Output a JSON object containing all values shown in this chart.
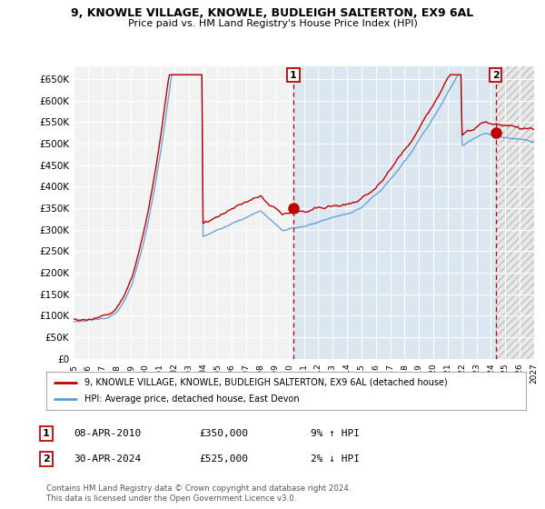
{
  "title": "9, KNOWLE VILLAGE, KNOWLE, BUDLEIGH SALTERTON, EX9 6AL",
  "subtitle": "Price paid vs. HM Land Registry's House Price Index (HPI)",
  "ylim": [
    0,
    680000
  ],
  "yticks": [
    0,
    50000,
    100000,
    150000,
    200000,
    250000,
    300000,
    350000,
    400000,
    450000,
    500000,
    550000,
    600000,
    650000
  ],
  "ytick_labels": [
    "£0",
    "£50K",
    "£100K",
    "£150K",
    "£200K",
    "£250K",
    "£300K",
    "£350K",
    "£400K",
    "£450K",
    "£500K",
    "£550K",
    "£600K",
    "£650K"
  ],
  "hpi_color": "#5b9bd5",
  "price_color": "#c00000",
  "bg_color": "#f2f2f2",
  "plot_bg_color": "#f2f2f2",
  "shade_color": "#dce6f1",
  "hatch_color": "#d0d0d0",
  "grid_color": "#ffffff",
  "legend_label_price": "9, KNOWLE VILLAGE, KNOWLE, BUDLEIGH SALTERTON, EX9 6AL (detached house)",
  "legend_label_hpi": "HPI: Average price, detached house, East Devon",
  "sale1_label": "1",
  "sale1_date": "08-APR-2010",
  "sale1_price": "£350,000",
  "sale1_hpi": "9% ↑ HPI",
  "sale2_label": "2",
  "sale2_date": "30-APR-2024",
  "sale2_price": "£525,000",
  "sale2_hpi": "2% ↓ HPI",
  "footnote": "Contains HM Land Registry data © Crown copyright and database right 2024.\nThis data is licensed under the Open Government Licence v3.0.",
  "xstart_year": 1995,
  "xend_year": 2027,
  "xtick_years": [
    1995,
    1996,
    1997,
    1998,
    1999,
    2000,
    2001,
    2002,
    2003,
    2004,
    2005,
    2006,
    2007,
    2008,
    2009,
    2010,
    2011,
    2012,
    2013,
    2014,
    2015,
    2016,
    2017,
    2018,
    2019,
    2020,
    2021,
    2022,
    2023,
    2024,
    2025,
    2026,
    2027
  ],
  "sale1_x": 2010.27,
  "sale1_y": 350000,
  "sale2_x": 2024.33,
  "sale2_y": 525000
}
